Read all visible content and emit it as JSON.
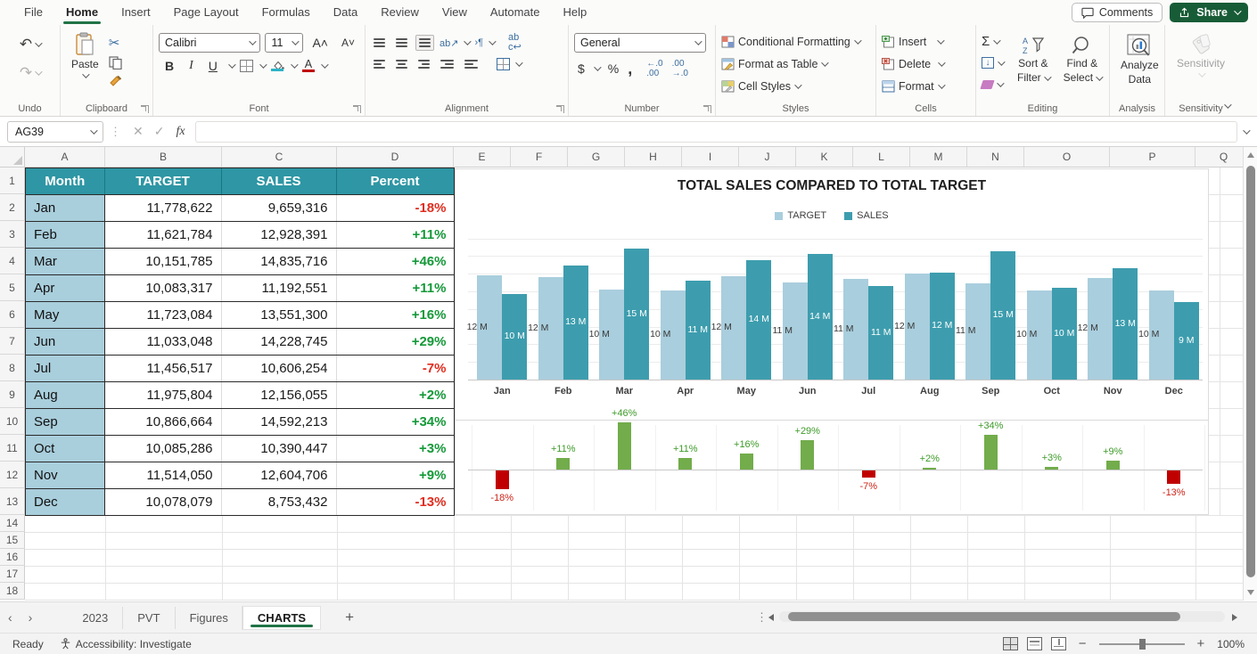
{
  "menu": {
    "tabs": [
      "File",
      "Home",
      "Insert",
      "Page Layout",
      "Formulas",
      "Data",
      "Review",
      "View",
      "Automate",
      "Help"
    ],
    "active_tab": "Home",
    "comments_label": "Comments",
    "share_label": "Share"
  },
  "ribbon": {
    "paste": "Paste",
    "font_name": "Calibri",
    "font_size": "11",
    "bold": "B",
    "italic": "I",
    "underline": "U",
    "number_format": "General",
    "currency": "$",
    "percent_style": "%",
    "comma_style": ",",
    "conditional_formatting": "Conditional Formatting",
    "format_as_table": "Format as Table",
    "cell_styles": "Cell Styles",
    "insert": "Insert",
    "delete": "Delete",
    "format": "Format",
    "autosum": "Σ",
    "sort_filter_1": "Sort &",
    "sort_filter_2": "Filter",
    "find_select_1": "Find &",
    "find_select_2": "Select",
    "analyze_1": "Analyze",
    "analyze_2": "Data",
    "sensitivity": "Sensitivity",
    "groups": {
      "undo": "Undo",
      "clipboard": "Clipboard",
      "font": "Font",
      "alignment": "Alignment",
      "number": "Number",
      "styles": "Styles",
      "cells": "Cells",
      "editing": "Editing",
      "analysis": "Analysis",
      "sensitivity": "Sensitivity"
    }
  },
  "formula_bar": {
    "name_box": "AG39",
    "fx": "fx"
  },
  "grid": {
    "visible_columns": [
      "A",
      "B",
      "C",
      "D",
      "E",
      "F",
      "G",
      "H",
      "I",
      "J",
      "K",
      "L",
      "M",
      "N",
      "O",
      "P",
      "Q"
    ],
    "visible_rows": 18
  },
  "table": {
    "headers": [
      "Month",
      "TARGET",
      "SALES",
      "Percent"
    ],
    "rows": [
      [
        "Jan",
        "11,778,622",
        "9,659,316",
        "-18%"
      ],
      [
        "Feb",
        "11,621,784",
        "12,928,391",
        "+11%"
      ],
      [
        "Mar",
        "10,151,785",
        "14,835,716",
        "+46%"
      ],
      [
        "Apr",
        "10,083,317",
        "11,192,551",
        "+11%"
      ],
      [
        "May",
        "11,723,084",
        "13,551,300",
        "+16%"
      ],
      [
        "Jun",
        "11,033,048",
        "14,228,745",
        "+29%"
      ],
      [
        "Jul",
        "11,456,517",
        "10,606,254",
        "-7%"
      ],
      [
        "Aug",
        "11,975,804",
        "12,156,055",
        "+2%"
      ],
      [
        "Sep",
        "10,866,664",
        "14,592,213",
        "+34%"
      ],
      [
        "Oct",
        "10,085,286",
        "10,390,447",
        "+3%"
      ],
      [
        "Nov",
        "11,514,050",
        "12,604,706",
        "+9%"
      ],
      [
        "Dec",
        "10,078,079",
        "8,753,432",
        "-13%"
      ]
    ],
    "positive_color": "#149938",
    "negative_color": "#E02D1F",
    "header_fill": "#2E96A4",
    "month_fill": "#A9CEDC"
  },
  "chart_data": [
    {
      "type": "bar",
      "title": "TOTAL SALES COMPARED TO TOTAL TARGET",
      "categories": [
        "Jan",
        "Feb",
        "Mar",
        "Apr",
        "May",
        "Jun",
        "Jul",
        "Aug",
        "Sep",
        "Oct",
        "Nov",
        "Dec"
      ],
      "series": [
        {
          "name": "TARGET",
          "color": "#A9CEDD",
          "values": [
            11778622,
            11621784,
            10151785,
            10083317,
            11723084,
            11033048,
            11456517,
            11975804,
            10866664,
            10085286,
            11514050,
            10078079
          ],
          "labels": [
            "12 M",
            "12 M",
            "10 M",
            "10 M",
            "12 M",
            "11 M",
            "11 M",
            "12 M",
            "11 M",
            "10 M",
            "12 M",
            "10 M"
          ],
          "label_color": "#3A3A3A"
        },
        {
          "name": "SALES",
          "color": "#3D9DAE",
          "values": [
            9659316,
            12928391,
            14835716,
            11192551,
            13551300,
            14228745,
            10606254,
            12156055,
            14592213,
            10390447,
            12604706,
            8753432
          ],
          "labels": [
            "10 M",
            "13 M",
            "15 M",
            "11 M",
            "14 M",
            "14 M",
            "11 M",
            "12 M",
            "15 M",
            "10 M",
            "13 M",
            "9 M"
          ],
          "label_color": "#FFFFFF"
        }
      ],
      "ylim": [
        0,
        17000000
      ],
      "gridlines": "horizontal",
      "legend_position": "top"
    },
    {
      "type": "bar",
      "title": "",
      "categories": [
        "Jan",
        "Feb",
        "Mar",
        "Apr",
        "May",
        "Jun",
        "Jul",
        "Aug",
        "Sep",
        "Oct",
        "Nov",
        "Dec"
      ],
      "values": [
        -18,
        11,
        46,
        11,
        16,
        29,
        -7,
        2,
        34,
        3,
        9,
        -13
      ],
      "labels": [
        "-18%",
        "+11%",
        "+46%",
        "+11%",
        "+16%",
        "+29%",
        "-7%",
        "+2%",
        "+34%",
        "+3%",
        "+9%",
        "-13%"
      ],
      "positive_color": "#72AC4B",
      "negative_color": "#C00000",
      "positive_label_color": "#3D9B28",
      "negative_label_color": "#CC2418",
      "ylim": [
        -25,
        55
      ]
    }
  ],
  "sheet_tabs": {
    "tabs": [
      "2023",
      "PVT",
      "Figures",
      "CHARTS"
    ],
    "active_tab": "CHARTS",
    "add_label": "+"
  },
  "status_bar": {
    "ready": "Ready",
    "accessibility": "Accessibility: Investigate",
    "zoom_level": "100%"
  }
}
